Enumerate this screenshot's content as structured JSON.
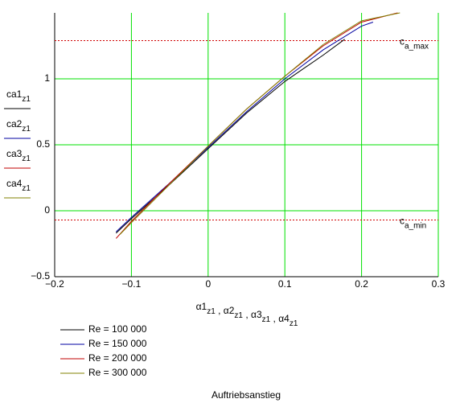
{
  "chart_data": {
    "type": "line",
    "caption": "Auftriebsanstieg",
    "x_label": [
      [
        "α1",
        "z1"
      ],
      [
        "α2",
        "z1"
      ],
      [
        "α3",
        "z1"
      ],
      [
        "α4",
        "z1"
      ]
    ],
    "x_label_sep": " , ",
    "xlim": [
      -0.2,
      0.3
    ],
    "xticks": [
      {
        "value": -0.2,
        "label": "−0.2"
      },
      {
        "value": -0.1,
        "label": "−0.1"
      },
      0,
      0.1,
      0.2,
      0.3
    ],
    "ylim": [
      -0.5,
      1.5
    ],
    "yticks": [
      {
        "value": -0.5,
        "label": "−0.5"
      },
      0,
      0.5,
      1
    ],
    "grid": true,
    "grid_color": "#00e000",
    "hlines": [
      {
        "value": 1.29,
        "label": [
          "c",
          "a_max"
        ],
        "color": "#d00000"
      },
      {
        "value": -0.07,
        "label": [
          "c",
          "a_min"
        ],
        "color": "#d00000"
      }
    ],
    "series": [
      {
        "name": "Re = 100 000",
        "y_label": [
          "ca1",
          "z1"
        ],
        "color": "#000000",
        "x": [
          -0.12,
          -0.1,
          -0.05,
          0,
          0.05,
          0.1,
          0.15,
          0.178
        ],
        "values": [
          -0.17,
          -0.06,
          0.2,
          0.47,
          0.74,
          0.98,
          1.18,
          1.3
        ]
      },
      {
        "name": "Re = 150 000",
        "y_label": [
          "ca2",
          "z1"
        ],
        "color": "#0000a0",
        "x": [
          -0.12,
          -0.1,
          -0.05,
          0,
          0.05,
          0.1,
          0.15,
          0.2,
          0.215
        ],
        "values": [
          -0.16,
          -0.05,
          0.21,
          0.48,
          0.75,
          1.0,
          1.22,
          1.4,
          1.43
        ]
      },
      {
        "name": "Re = 200 000",
        "y_label": [
          "ca3",
          "z1"
        ],
        "color": "#c00000",
        "x": [
          -0.12,
          -0.1,
          -0.05,
          0,
          0.05,
          0.1,
          0.15,
          0.2,
          0.247
        ],
        "values": [
          -0.21,
          -0.08,
          0.21,
          0.49,
          0.77,
          1.02,
          1.25,
          1.43,
          1.5
        ]
      },
      {
        "name": "Re = 300 000",
        "y_label": [
          "ca4",
          "z1"
        ],
        "color": "#808000",
        "x": [
          -0.115,
          -0.1,
          -0.05,
          0,
          0.05,
          0.1,
          0.15,
          0.2,
          0.25
        ],
        "values": [
          -0.18,
          -0.09,
          0.2,
          0.49,
          0.77,
          1.02,
          1.26,
          1.44,
          1.5
        ]
      }
    ]
  }
}
